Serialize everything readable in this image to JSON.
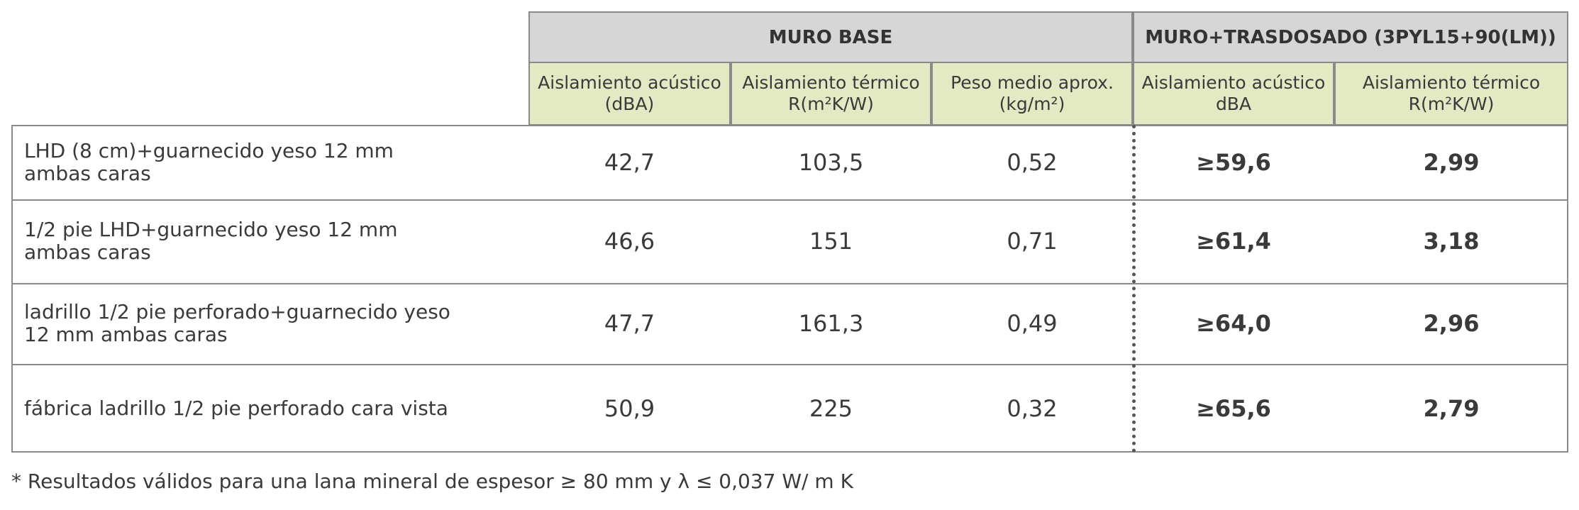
{
  "table": {
    "groups": [
      "MURO BASE",
      "MURO+TRASDOSADO (3PYL15+90(LM))"
    ],
    "subheaders": [
      "Aislamiento acústico (dBA)",
      "Aislamiento térmico  R(m²K/W)",
      "Peso medio aprox. (kg/m²)",
      "Aislamiento acústico dBA",
      "Aislamiento térmico  R(m²K/W)"
    ],
    "rows": [
      [
        "LHD (8 cm)+guarnecido yeso 12 mm\nambas caras",
        "42,7",
        "103,5",
        "0,52",
        "≥59,6",
        "2,99"
      ],
      [
        "1/2 pie LHD+guarnecido yeso 12 mm\nambas caras",
        "46,6",
        "151",
        "0,71",
        "≥61,4",
        "3,18"
      ],
      [
        "ladrillo 1/2 pie perforado+guarnecido yeso\n12 mm ambas caras",
        "47,7",
        "161,3",
        "0,49",
        "≥64,0",
        "2,96"
      ],
      [
        "fábrica ladrillo 1/2 pie perforado cara vista",
        "50,9",
        "225",
        "0,32",
        "≥65,6",
        "2,79"
      ]
    ]
  },
  "footnote": "* Resultados válidos para una lana mineral de espesor ≥ 80 mm y λ ≤ 0,037 W/ m K"
}
